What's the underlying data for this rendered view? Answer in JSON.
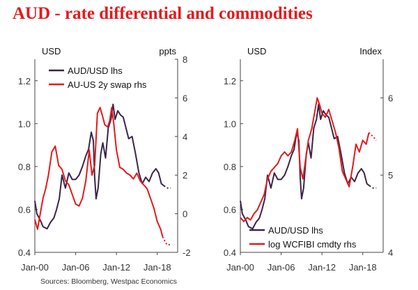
{
  "title": "AUD - rate differential and commodities",
  "source": "Sources: Bloomberg, Westpac Economics",
  "colors": {
    "audusd": "#3b2448",
    "red": "#e31a1c",
    "title": "#e31a1c"
  },
  "chart_data": [
    {
      "type": "line",
      "left_unit": "USD",
      "right_unit": "ppts",
      "x_ticks": [
        "Jan-00",
        "Jan-06",
        "Jan-12",
        "Jan-18"
      ],
      "xlim": [
        2000.0,
        2021.0
      ],
      "left_ylim": [
        0.4,
        1.3
      ],
      "left_ticks": [
        "0.4",
        "0.6",
        "0.8",
        "1.0",
        "1.2"
      ],
      "right_ylim": [
        -2,
        8
      ],
      "right_ticks": [
        "-2",
        "0",
        "2",
        "4",
        "6",
        "8"
      ],
      "series": [
        {
          "name": "AUD/USD lhs",
          "axis": "left",
          "color": "#3b2448",
          "x": [
            2000.0,
            2000.3,
            2000.8,
            2001.2,
            2001.8,
            2002.3,
            2002.8,
            2003.2,
            2003.6,
            2004.0,
            2004.5,
            2005.0,
            2005.5,
            2006.0,
            2006.5,
            2007.0,
            2007.5,
            2007.9,
            2008.3,
            2008.6,
            2008.8,
            2009.0,
            2009.3,
            2009.7,
            2010.0,
            2010.4,
            2010.8,
            2011.2,
            2011.5,
            2011.8,
            2012.2,
            2012.6,
            2013.0,
            2013.4,
            2013.8,
            2014.3,
            2014.8,
            2015.3,
            2015.8,
            2016.3,
            2016.8,
            2017.3,
            2017.8,
            2018.2,
            2018.6,
            2019.0
          ],
          "y": [
            0.64,
            0.58,
            0.55,
            0.52,
            0.51,
            0.54,
            0.56,
            0.6,
            0.65,
            0.76,
            0.7,
            0.77,
            0.74,
            0.74,
            0.76,
            0.8,
            0.85,
            0.88,
            0.96,
            0.92,
            0.75,
            0.65,
            0.7,
            0.86,
            0.91,
            0.84,
            0.98,
            1.02,
            1.09,
            1.02,
            1.06,
            1.04,
            1.03,
            0.98,
            0.93,
            0.94,
            0.86,
            0.77,
            0.72,
            0.75,
            0.73,
            0.77,
            0.79,
            0.77,
            0.72,
            0.71
          ]
        },
        {
          "name": "AUD/USD lhs (dotted)",
          "axis": "left",
          "color": "#3b2448",
          "dotted": true,
          "x": [
            2019.0,
            2019.5,
            2020.0
          ],
          "y": [
            0.71,
            0.7,
            0.7
          ]
        },
        {
          "name": "AU-US 2y swap rhs",
          "axis": "right",
          "color": "#e31a1c",
          "x": [
            2000.0,
            2000.4,
            2000.8,
            2001.2,
            2001.6,
            2002.0,
            2002.5,
            2003.0,
            2003.5,
            2004.0,
            2004.5,
            2005.0,
            2005.5,
            2006.0,
            2006.5,
            2007.0,
            2007.5,
            2008.0,
            2008.4,
            2008.8,
            2009.2,
            2009.6,
            2010.0,
            2010.3,
            2010.7,
            2011.0,
            2011.3,
            2011.6,
            2012.0,
            2012.5,
            2013.0,
            2013.5,
            2014.0,
            2014.5,
            2015.0,
            2015.5,
            2016.0,
            2016.5,
            2017.0,
            2017.5,
            2018.0,
            2018.5,
            2018.8
          ],
          "y": [
            -0.3,
            -0.8,
            0.0,
            0.8,
            1.3,
            2.0,
            3.2,
            3.5,
            2.5,
            2.3,
            1.7,
            1.5,
            1.0,
            0.5,
            0.4,
            0.8,
            1.7,
            3.3,
            2.0,
            2.5,
            5.2,
            5.5,
            5.0,
            4.6,
            4.5,
            4.8,
            5.5,
            4.7,
            3.3,
            2.4,
            2.3,
            2.1,
            2.0,
            1.8,
            2.1,
            1.7,
            1.5,
            1.3,
            0.8,
            0.3,
            -0.4,
            -0.8,
            -1.2
          ]
        },
        {
          "name": "AU-US 2y swap rhs (dotted)",
          "axis": "right",
          "color": "#e31a1c",
          "dotted": true,
          "x": [
            2018.8,
            2019.4,
            2020.0
          ],
          "y": [
            -1.2,
            -1.6,
            -1.6
          ]
        }
      ]
    },
    {
      "type": "line",
      "left_unit": "USD",
      "right_unit": "Index",
      "x_ticks": [
        "Jan-00",
        "Jan-06",
        "Jan-12",
        "Jan-18"
      ],
      "xlim": [
        2000.0,
        2021.0
      ],
      "left_ylim": [
        0.4,
        1.3
      ],
      "left_ticks": [
        "0.4",
        "0.6",
        "0.8",
        "1.0",
        "1.2"
      ],
      "right_ylim": [
        4.0,
        6.5
      ],
      "right_ticks": [
        "4",
        "5",
        "6"
      ],
      "series": [
        {
          "name": "AUD/USD lhs",
          "axis": "left",
          "color": "#3b2448",
          "x": [
            2000.0,
            2000.3,
            2000.8,
            2001.2,
            2001.8,
            2002.3,
            2002.8,
            2003.2,
            2003.6,
            2004.0,
            2004.5,
            2005.0,
            2005.5,
            2006.0,
            2006.5,
            2007.0,
            2007.5,
            2007.9,
            2008.3,
            2008.6,
            2008.8,
            2009.0,
            2009.3,
            2009.7,
            2010.0,
            2010.4,
            2010.8,
            2011.2,
            2011.5,
            2011.8,
            2012.2,
            2012.6,
            2013.0,
            2013.4,
            2013.8,
            2014.3,
            2014.8,
            2015.3,
            2015.8,
            2016.3,
            2016.8,
            2017.3,
            2017.8,
            2018.2,
            2018.6,
            2019.0
          ],
          "y": [
            0.64,
            0.58,
            0.55,
            0.52,
            0.51,
            0.54,
            0.56,
            0.6,
            0.65,
            0.76,
            0.7,
            0.77,
            0.74,
            0.74,
            0.76,
            0.8,
            0.85,
            0.88,
            0.96,
            0.92,
            0.75,
            0.65,
            0.7,
            0.86,
            0.91,
            0.84,
            0.98,
            1.02,
            1.09,
            1.02,
            1.06,
            1.04,
            1.03,
            0.98,
            0.93,
            0.94,
            0.86,
            0.77,
            0.72,
            0.75,
            0.73,
            0.77,
            0.79,
            0.77,
            0.72,
            0.71
          ]
        },
        {
          "name": "AUD/USD lhs (dotted)",
          "axis": "left",
          "color": "#3b2448",
          "dotted": true,
          "x": [
            2019.0,
            2019.5,
            2020.0
          ],
          "y": [
            0.71,
            0.7,
            0.7
          ]
        },
        {
          "name": "log WCFIBI cmdty rhs",
          "axis": "right",
          "color": "#e31a1c",
          "x": [
            2000.0,
            2000.5,
            2001.0,
            2001.5,
            2002.0,
            2002.5,
            2003.0,
            2003.5,
            2004.0,
            2004.5,
            2005.0,
            2005.5,
            2006.0,
            2006.5,
            2007.0,
            2007.5,
            2008.0,
            2008.4,
            2008.8,
            2009.2,
            2009.6,
            2010.0,
            2010.5,
            2011.0,
            2011.3,
            2011.7,
            2012.0,
            2012.5,
            2013.0,
            2013.5,
            2014.0,
            2014.5,
            2015.0,
            2015.5,
            2016.0,
            2016.5,
            2017.0,
            2017.5,
            2018.0,
            2018.5,
            2018.9
          ],
          "y": [
            4.45,
            4.4,
            4.45,
            4.42,
            4.5,
            4.55,
            4.65,
            4.75,
            4.95,
            5.05,
            5.1,
            5.15,
            5.25,
            5.3,
            5.25,
            5.3,
            5.45,
            5.6,
            5.1,
            4.95,
            5.2,
            5.45,
            5.6,
            5.85,
            6.0,
            5.9,
            5.8,
            5.75,
            5.85,
            5.7,
            5.55,
            5.35,
            5.05,
            4.95,
            4.85,
            5.1,
            5.4,
            5.3,
            5.45,
            5.4,
            5.55
          ]
        },
        {
          "name": "log WCFIBI cmdty rhs (dotted)",
          "axis": "right",
          "color": "#e31a1c",
          "dotted": true,
          "x": [
            2018.9,
            2019.5,
            2020.0
          ],
          "y": [
            5.55,
            5.5,
            5.45
          ]
        }
      ]
    }
  ]
}
